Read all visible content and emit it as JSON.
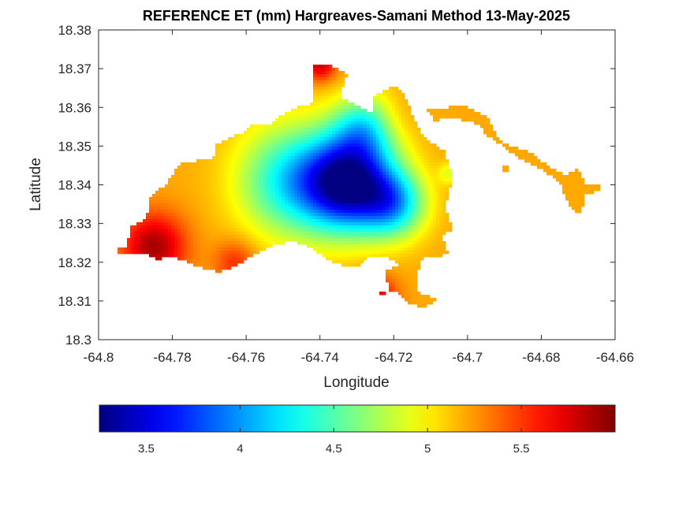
{
  "chart_data": {
    "type": "heatmap",
    "title": "REFERENCE ET (mm) Hargreaves-Samani Method  13-May-2025",
    "xlabel": "Longitude",
    "ylabel": "Latitude",
    "xlim": [
      -64.8,
      -64.66
    ],
    "ylim": [
      18.3,
      18.38
    ],
    "x_ticks": [
      -64.8,
      -64.78,
      -64.76,
      -64.74,
      -64.72,
      -64.7,
      -64.68,
      -64.66
    ],
    "x_tick_labels": [
      "-64.8",
      "-64.78",
      "-64.76",
      "-64.74",
      "-64.72",
      "-64.7",
      "-64.68",
      "-64.66"
    ],
    "y_ticks": [
      18.3,
      18.31,
      18.32,
      18.33,
      18.34,
      18.35,
      18.36,
      18.37,
      18.38
    ],
    "y_tick_labels": [
      "18.3",
      "18.31",
      "18.32",
      "18.33",
      "18.34",
      "18.35",
      "18.36",
      "18.37",
      "18.38"
    ],
    "colormap": "jet",
    "clim": [
      3.25,
      6.0
    ],
    "colorbar_ticks": [
      3.5,
      4,
      4.5,
      5,
      5.5
    ],
    "colorbar_tick_labels": [
      "3.5",
      "4",
      "4.5",
      "5",
      "5.5"
    ],
    "colorbar_location": "bottom",
    "grid": false,
    "field": {
      "base_value": 5.2,
      "anomalies": [
        {
          "lon": -64.732,
          "lat": 18.3405,
          "amp": -1.85,
          "s": 0.0085
        },
        {
          "lon": -64.72,
          "lat": 18.335,
          "amp": -0.9,
          "s": 0.006
        },
        {
          "lon": -64.748,
          "lat": 18.341,
          "amp": -0.9,
          "s": 0.01
        },
        {
          "lon": -64.728,
          "lat": 18.355,
          "amp": -0.7,
          "s": 0.006
        },
        {
          "lon": -64.705,
          "lat": 18.343,
          "amp": -0.3,
          "s": 0.002
        },
        {
          "lon": -64.785,
          "lat": 18.324,
          "amp": 0.7,
          "s": 0.006
        },
        {
          "lon": -64.763,
          "lat": 18.32,
          "amp": 0.35,
          "s": 0.004
        },
        {
          "lon": -64.725,
          "lat": 18.311,
          "amp": 0.55,
          "s": 0.004
        },
        {
          "lon": -64.74,
          "lat": 18.371,
          "amp": 0.6,
          "s": 0.003
        },
        {
          "lon": -64.72,
          "lat": 18.357,
          "amp": 0.1,
          "s": 0.004
        }
      ],
      "regions": [
        {
          "name": "main-island",
          "lon": [
            -64.793,
            -64.791,
            -64.787,
            -64.786,
            -64.781,
            -64.778,
            -64.769,
            -64.768,
            -64.761,
            -64.759,
            -64.753,
            -64.751,
            -64.748,
            -64.745,
            -64.739,
            -64.734,
            -64.726,
            -64.725,
            -64.72,
            -64.718,
            -64.714,
            -64.712,
            -64.706,
            -64.704,
            -64.706,
            -64.704,
            -64.707,
            -64.705,
            -64.712,
            -64.714,
            -64.713,
            -64.708,
            -64.711,
            -64.7155,
            -64.719,
            -64.721,
            -64.7225,
            -64.718,
            -64.7225,
            -64.727,
            -64.7295,
            -64.736,
            -64.742,
            -64.747,
            -64.752,
            -64.757,
            -64.762,
            -64.767,
            -64.772,
            -64.777,
            -64.781,
            -64.784,
            -64.787,
            -64.7905,
            -64.7925
          ],
          "lat": [
            18.3225,
            18.3295,
            18.331,
            18.3365,
            18.341,
            18.3455,
            18.347,
            18.3505,
            18.3535,
            18.3555,
            18.3555,
            18.358,
            18.359,
            18.3605,
            18.3615,
            18.3625,
            18.3585,
            18.3635,
            18.3655,
            18.3645,
            18.3565,
            18.3525,
            18.3485,
            18.3415,
            18.3345,
            18.3285,
            18.3265,
            18.322,
            18.321,
            18.3165,
            18.3115,
            18.311,
            18.3085,
            18.309,
            18.3125,
            18.3125,
            18.3175,
            18.3195,
            18.3215,
            18.3215,
            18.319,
            18.3195,
            18.3235,
            18.3255,
            18.3245,
            18.3225,
            18.3195,
            18.3175,
            18.3185,
            18.3205,
            18.3215,
            18.3205,
            18.3225,
            18.3225,
            18.3225
          ]
        },
        {
          "name": "north-peninsula",
          "lon": [
            -64.7415,
            -64.737,
            -64.7325,
            -64.7335,
            -64.7345,
            -64.7365,
            -64.7395,
            -64.7415
          ],
          "lat": [
            18.371,
            18.371,
            18.3685,
            18.3665,
            18.3605,
            18.3575,
            18.3585,
            18.3615
          ]
        },
        {
          "name": "east-strip",
          "lon": [
            -64.711,
            -64.7,
            -64.699,
            -64.697,
            -64.695,
            -64.694,
            -64.692,
            -64.688,
            -64.683,
            -64.679,
            -64.676,
            -64.673,
            -64.67,
            -64.668,
            -64.664,
            -64.664,
            -64.668,
            -64.669,
            -64.671,
            -64.673,
            -64.675,
            -64.679,
            -64.683,
            -64.687,
            -64.691,
            -64.695,
            -64.697,
            -64.7,
            -64.705,
            -64.709
          ],
          "lat": [
            18.3595,
            18.3605,
            18.3595,
            18.3585,
            18.3575,
            18.357,
            18.352,
            18.35,
            18.3485,
            18.3455,
            18.3435,
            18.3425,
            18.3445,
            18.3405,
            18.34,
            18.3385,
            18.3375,
            18.333,
            18.333,
            18.336,
            18.3405,
            18.3435,
            18.3455,
            18.3475,
            18.3505,
            18.353,
            18.3555,
            18.3565,
            18.3575,
            18.3565
          ]
        },
        {
          "name": "islet-1",
          "lon": [
            -64.7948,
            -64.7924,
            -64.7924,
            -64.7948
          ],
          "lat": [
            18.3236,
            18.3236,
            18.3218,
            18.3218
          ]
        },
        {
          "name": "islet-2",
          "lon": [
            -64.7888,
            -64.787,
            -64.787,
            -64.7888
          ],
          "lat": [
            18.316,
            18.316,
            18.3154,
            18.3154
          ]
        },
        {
          "name": "islet-3",
          "lon": [
            -64.7235,
            -64.7222,
            -64.7222,
            -64.7235
          ],
          "lat": [
            18.3125,
            18.3125,
            18.3112,
            18.3112
          ]
        },
        {
          "name": "islet-4",
          "lon": [
            -64.7062,
            -64.7044,
            -64.7044,
            -64.7062
          ],
          "lat": [
            18.3445,
            18.3445,
            18.3425,
            18.3425
          ]
        },
        {
          "name": "islet-5",
          "lon": [
            -64.6902,
            -64.6886,
            -64.6886,
            -64.6902
          ],
          "lat": [
            18.3448,
            18.3448,
            18.3434,
            18.3434
          ]
        }
      ]
    }
  }
}
